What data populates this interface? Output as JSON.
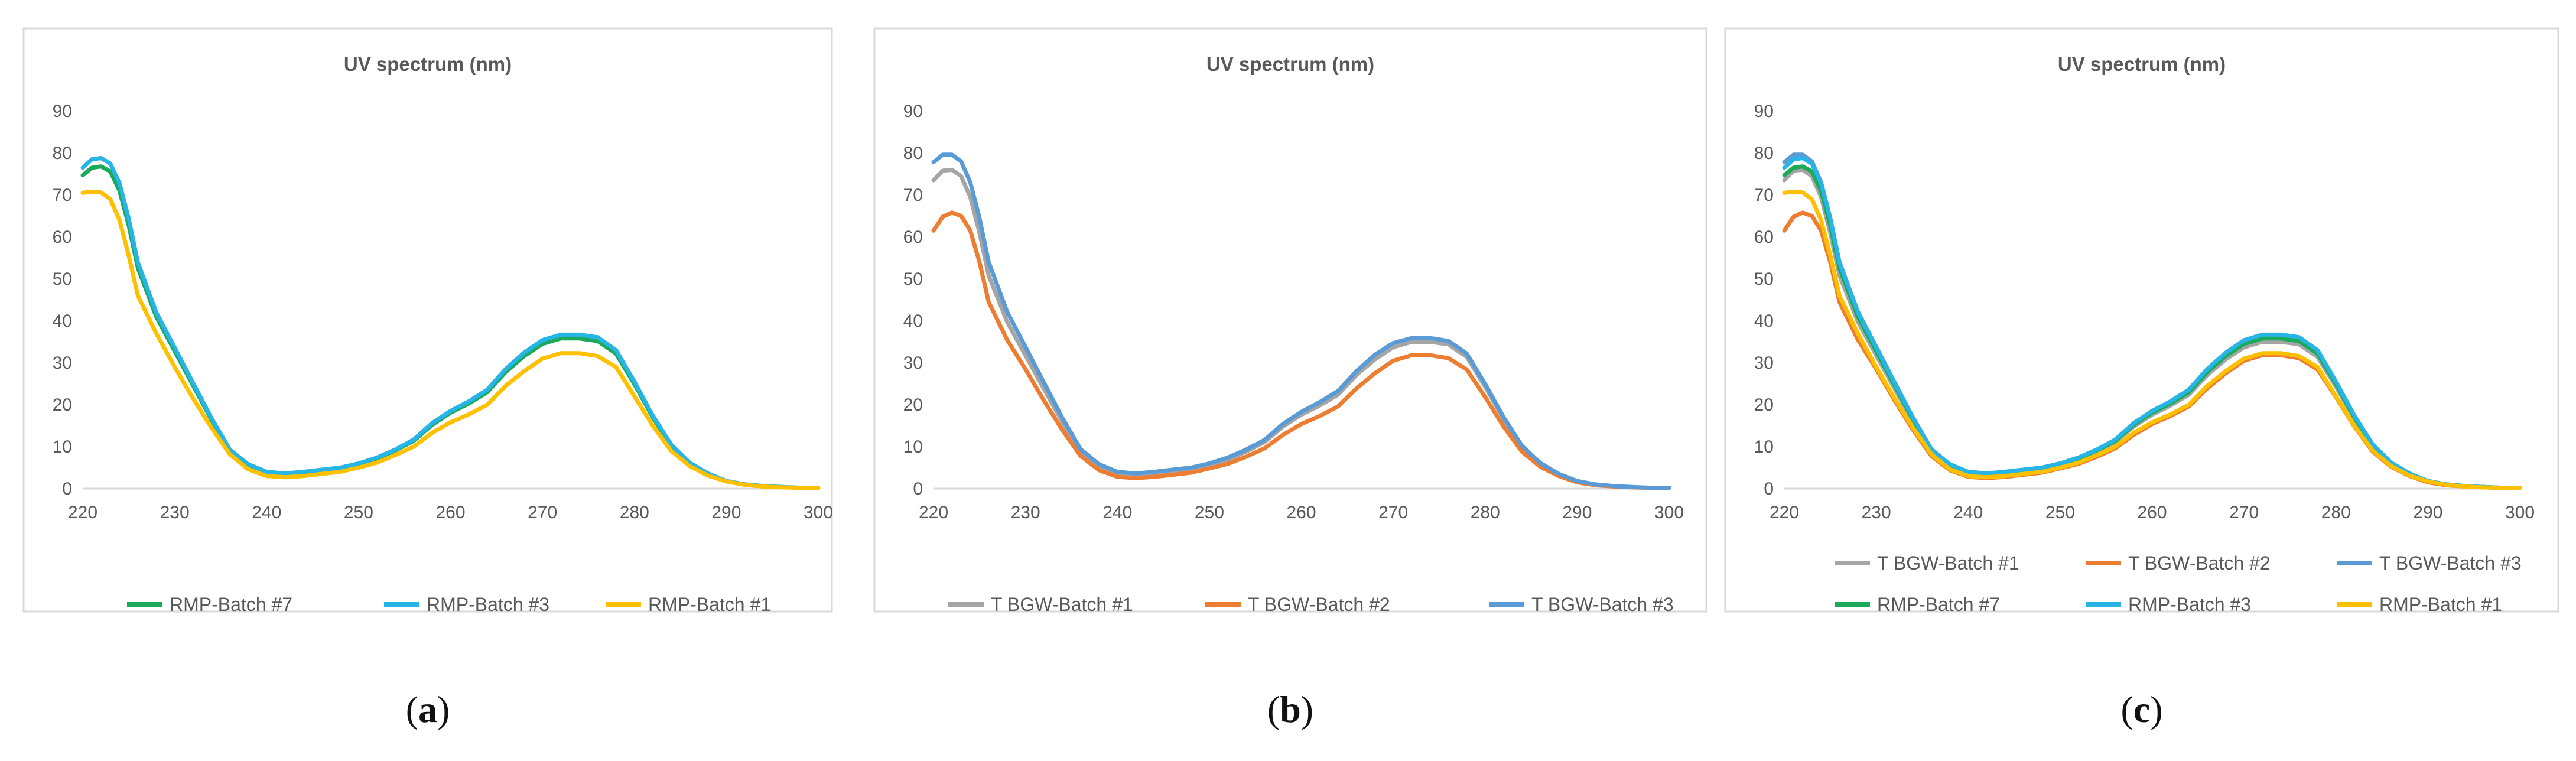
{
  "chart_data": [
    {
      "type": "line",
      "panel_id": "a",
      "caption": {
        "open": "(",
        "letter": "a",
        "close": ")"
      },
      "title": "UV spectrum (nm)",
      "xlabel": "",
      "ylabel": "",
      "xlim": [
        220,
        300
      ],
      "ylim": [
        0,
        90
      ],
      "x_ticks": [
        220,
        230,
        240,
        250,
        260,
        270,
        280,
        290,
        300
      ],
      "y_ticks": [
        0,
        10,
        20,
        30,
        40,
        50,
        60,
        70,
        80,
        90
      ],
      "legend_position": "bottom",
      "x": [
        220,
        221,
        222,
        223,
        224,
        225,
        226,
        228,
        230,
        232,
        234,
        236,
        238,
        240,
        242,
        244,
        246,
        248,
        250,
        252,
        254,
        256,
        258,
        260,
        262,
        264,
        266,
        268,
        270,
        272,
        274,
        276,
        278,
        280,
        282,
        284,
        286,
        288,
        290,
        292,
        294,
        296,
        298,
        300
      ],
      "series": [
        {
          "name": "RMP-Batch #7",
          "color": "#1aaa5a",
          "values": [
            74.7,
            76.5,
            76.8,
            75.6,
            71.0,
            62.8,
            52.6,
            41.0,
            32.8,
            24.6,
            16.4,
            9.1,
            5.7,
            3.9,
            3.5,
            3.9,
            4.4,
            4.9,
            5.9,
            7.2,
            9.1,
            11.4,
            15.2,
            18.1,
            20.3,
            23.0,
            27.8,
            31.6,
            34.5,
            35.8,
            35.8,
            35.2,
            32.2,
            24.9,
            17.0,
            10.2,
            6.1,
            3.5,
            1.8,
            1.0,
            0.6,
            0.4,
            0.2,
            0.2
          ]
        },
        {
          "name": "RMP-Batch #3",
          "color": "#26b5e6",
          "values": [
            76.5,
            78.5,
            78.8,
            77.5,
            72.8,
            64.4,
            53.9,
            42.0,
            33.6,
            25.2,
            16.8,
            9.3,
            5.8,
            4.0,
            3.6,
            4.0,
            4.5,
            5.0,
            6.0,
            7.4,
            9.3,
            11.7,
            15.6,
            18.5,
            20.8,
            23.6,
            28.5,
            32.4,
            35.4,
            36.7,
            36.7,
            36.1,
            33.0,
            25.5,
            17.4,
            10.5,
            6.2,
            3.6,
            1.8,
            1.0,
            0.6,
            0.4,
            0.2,
            0.2
          ]
        },
        {
          "name": "RMP-Batch #1",
          "color": "#ffc000",
          "values": [
            70.5,
            70.8,
            70.6,
            69.0,
            64.0,
            55.6,
            46.0,
            37.0,
            29.0,
            21.5,
            14.5,
            8.2,
            4.6,
            3.0,
            2.7,
            3.0,
            3.5,
            4.0,
            5.0,
            6.2,
            8.0,
            10.0,
            13.3,
            15.8,
            17.7,
            20.0,
            24.5,
            28.0,
            31.0,
            32.3,
            32.3,
            31.6,
            29.0,
            22.0,
            15.0,
            9.0,
            5.4,
            3.1,
            1.7,
            0.9,
            0.5,
            0.3,
            0.2,
            0.2
          ]
        }
      ]
    },
    {
      "type": "line",
      "panel_id": "b",
      "caption": {
        "open": "(",
        "letter": "b",
        "close": ")"
      },
      "title": "UV spectrum (nm)",
      "xlabel": "",
      "ylabel": "",
      "xlim": [
        220,
        300
      ],
      "ylim": [
        0,
        90
      ],
      "x_ticks": [
        220,
        230,
        240,
        250,
        260,
        270,
        280,
        290,
        300
      ],
      "y_ticks": [
        0,
        10,
        20,
        30,
        40,
        50,
        60,
        70,
        80,
        90
      ],
      "legend_position": "bottom",
      "x": [
        220,
        221,
        222,
        223,
        224,
        225,
        226,
        228,
        230,
        232,
        234,
        236,
        238,
        240,
        242,
        244,
        246,
        248,
        250,
        252,
        254,
        256,
        258,
        260,
        262,
        264,
        266,
        268,
        270,
        272,
        274,
        276,
        278,
        280,
        282,
        284,
        286,
        288,
        290,
        292,
        294,
        296,
        298,
        300
      ],
      "series": [
        {
          "name": "T BGW-Batch #1",
          "color": "#a5a5a5",
          "values": [
            73.5,
            75.8,
            76.0,
            74.5,
            69.5,
            61.0,
            50.8,
            39.8,
            31.8,
            23.8,
            15.9,
            8.8,
            5.4,
            3.6,
            3.2,
            3.6,
            4.1,
            4.6,
            5.6,
            6.9,
            8.8,
            11.1,
            14.8,
            17.6,
            19.8,
            22.4,
            27.1,
            30.8,
            33.7,
            35.0,
            35.0,
            34.4,
            31.4,
            24.3,
            16.6,
            10.0,
            5.9,
            3.4,
            1.7,
            0.9,
            0.5,
            0.3,
            0.2,
            0.2
          ]
        },
        {
          "name": "T BGW-Batch #2",
          "color": "#ed7d31",
          "values": [
            61.5,
            64.8,
            65.8,
            65.0,
            61.5,
            54.0,
            44.5,
            35.5,
            28.5,
            21.0,
            14.0,
            7.8,
            4.4,
            2.8,
            2.5,
            2.8,
            3.3,
            3.8,
            4.8,
            5.9,
            7.6,
            9.6,
            12.8,
            15.4,
            17.3,
            19.6,
            23.9,
            27.5,
            30.5,
            31.8,
            31.8,
            31.1,
            28.4,
            21.8,
            14.8,
            8.8,
            5.2,
            3.0,
            1.5,
            0.8,
            0.5,
            0.3,
            0.2,
            0.2
          ]
        },
        {
          "name": "T BGW-Batch #3",
          "color": "#5b9bd5",
          "values": [
            77.8,
            79.6,
            79.6,
            78.0,
            73.0,
            64.5,
            54.0,
            42.2,
            33.8,
            25.3,
            16.9,
            9.4,
            5.8,
            4.0,
            3.6,
            4.0,
            4.5,
            5.0,
            6.0,
            7.4,
            9.3,
            11.6,
            15.4,
            18.3,
            20.6,
            23.3,
            28.0,
            31.9,
            34.7,
            35.9,
            35.9,
            35.2,
            32.2,
            24.9,
            17.0,
            10.2,
            6.1,
            3.5,
            1.8,
            1.0,
            0.6,
            0.4,
            0.2,
            0.2
          ]
        }
      ]
    },
    {
      "type": "line",
      "panel_id": "c",
      "caption": {
        "open": "(",
        "letter": "c",
        "close": ")"
      },
      "title": "UV spectrum (nm)",
      "xlabel": "",
      "ylabel": "",
      "xlim": [
        220,
        300
      ],
      "ylim": [
        0,
        90
      ],
      "x_ticks": [
        220,
        230,
        240,
        250,
        260,
        270,
        280,
        290,
        300
      ],
      "y_ticks": [
        0,
        10,
        20,
        30,
        40,
        50,
        60,
        70,
        80,
        90
      ],
      "legend_position": "bottom",
      "x": [
        220,
        221,
        222,
        223,
        224,
        225,
        226,
        228,
        230,
        232,
        234,
        236,
        238,
        240,
        242,
        244,
        246,
        248,
        250,
        252,
        254,
        256,
        258,
        260,
        262,
        264,
        266,
        268,
        270,
        272,
        274,
        276,
        278,
        280,
        282,
        284,
        286,
        288,
        290,
        292,
        294,
        296,
        298,
        300
      ],
      "series": [
        {
          "name": "T BGW-Batch #1",
          "color": "#a5a5a5",
          "values": [
            73.5,
            75.8,
            76.0,
            74.5,
            69.5,
            61.0,
            50.8,
            39.8,
            31.8,
            23.8,
            15.9,
            8.8,
            5.4,
            3.6,
            3.2,
            3.6,
            4.1,
            4.6,
            5.6,
            6.9,
            8.8,
            11.1,
            14.8,
            17.6,
            19.8,
            22.4,
            27.1,
            30.8,
            33.7,
            35.0,
            35.0,
            34.4,
            31.4,
            24.3,
            16.6,
            10.0,
            5.9,
            3.4,
            1.7,
            0.9,
            0.5,
            0.3,
            0.2,
            0.2
          ]
        },
        {
          "name": "T BGW-Batch #2",
          "color": "#ed7d31",
          "values": [
            61.5,
            64.8,
            65.8,
            65.0,
            61.5,
            54.0,
            44.5,
            35.5,
            28.5,
            21.0,
            14.0,
            7.8,
            4.4,
            2.8,
            2.5,
            2.8,
            3.3,
            3.8,
            4.8,
            5.9,
            7.6,
            9.6,
            12.8,
            15.4,
            17.3,
            19.6,
            23.9,
            27.5,
            30.5,
            31.8,
            31.8,
            31.1,
            28.4,
            21.8,
            14.8,
            8.8,
            5.2,
            3.0,
            1.5,
            0.8,
            0.5,
            0.3,
            0.2,
            0.2
          ]
        },
        {
          "name": "T BGW-Batch #3",
          "color": "#5b9bd5",
          "values": [
            77.8,
            79.6,
            79.6,
            78.0,
            73.0,
            64.5,
            54.0,
            42.2,
            33.8,
            25.3,
            16.9,
            9.4,
            5.8,
            4.0,
            3.6,
            4.0,
            4.5,
            5.0,
            6.0,
            7.4,
            9.3,
            11.6,
            15.4,
            18.3,
            20.6,
            23.3,
            28.0,
            31.9,
            34.7,
            35.9,
            35.9,
            35.2,
            32.2,
            24.9,
            17.0,
            10.2,
            6.1,
            3.5,
            1.8,
            1.0,
            0.6,
            0.4,
            0.2,
            0.2
          ]
        },
        {
          "name": "RMP-Batch #7",
          "color": "#1aaa5a",
          "values": [
            74.7,
            76.5,
            76.8,
            75.6,
            71.0,
            62.8,
            52.6,
            41.0,
            32.8,
            24.6,
            16.4,
            9.1,
            5.7,
            3.9,
            3.5,
            3.9,
            4.4,
            4.9,
            5.9,
            7.2,
            9.1,
            11.4,
            15.2,
            18.1,
            20.3,
            23.0,
            27.8,
            31.6,
            34.5,
            35.8,
            35.8,
            35.2,
            32.2,
            24.9,
            17.0,
            10.2,
            6.1,
            3.5,
            1.8,
            1.0,
            0.6,
            0.4,
            0.2,
            0.2
          ]
        },
        {
          "name": "RMP-Batch #3",
          "color": "#26b5e6",
          "values": [
            76.5,
            78.5,
            78.8,
            77.5,
            72.8,
            64.4,
            53.9,
            42.0,
            33.6,
            25.2,
            16.8,
            9.3,
            5.8,
            4.0,
            3.6,
            4.0,
            4.5,
            5.0,
            6.0,
            7.4,
            9.3,
            11.7,
            15.6,
            18.5,
            20.8,
            23.6,
            28.5,
            32.4,
            35.4,
            36.7,
            36.7,
            36.1,
            33.0,
            25.5,
            17.4,
            10.5,
            6.2,
            3.6,
            1.8,
            1.0,
            0.6,
            0.4,
            0.2,
            0.2
          ]
        },
        {
          "name": "RMP-Batch #1",
          "color": "#ffc000",
          "values": [
            70.5,
            70.8,
            70.6,
            69.0,
            64.0,
            55.6,
            46.0,
            37.0,
            29.0,
            21.5,
            14.5,
            8.2,
            4.6,
            3.0,
            2.7,
            3.0,
            3.5,
            4.0,
            5.0,
            6.2,
            8.0,
            10.0,
            13.3,
            15.8,
            17.7,
            20.0,
            24.5,
            28.0,
            31.0,
            32.3,
            32.3,
            31.6,
            29.0,
            22.0,
            15.0,
            9.0,
            5.4,
            3.1,
            1.7,
            0.9,
            0.5,
            0.3,
            0.2,
            0.2
          ]
        }
      ]
    }
  ]
}
